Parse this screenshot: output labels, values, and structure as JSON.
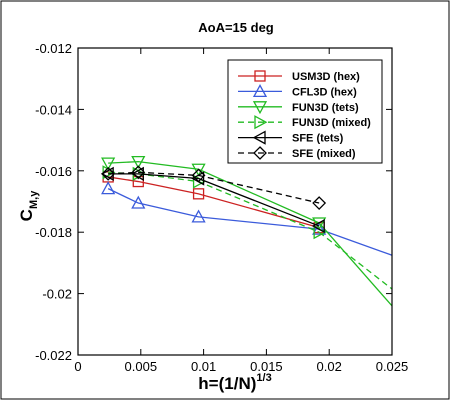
{
  "chart_data": {
    "type": "line",
    "title": "AoA=15 deg",
    "xlabel": {
      "main": "h=(1/N)",
      "sup": "1/3"
    },
    "ylabel": {
      "main": "C",
      "sub": "M,y"
    },
    "xlim": [
      0,
      0.025
    ],
    "ylim": [
      -0.022,
      -0.012
    ],
    "xticks": [
      0,
      0.005,
      0.01,
      0.015,
      0.02,
      0.025
    ],
    "xtick_labels": [
      "0",
      "0.005",
      "0.01",
      "0.015",
      "0.02",
      "0.025"
    ],
    "yticks": [
      -0.022,
      -0.02,
      -0.018,
      -0.016,
      -0.014,
      -0.012
    ],
    "ytick_labels": [
      "-0.022",
      "-0.02",
      "-0.018",
      "-0.016",
      "-0.014",
      "-0.012"
    ],
    "legend_position": "top-right",
    "series": [
      {
        "name": "USM3D (hex)",
        "color": "#cc2222",
        "marker": "square",
        "dashed": false,
        "x": [
          0.0024,
          0.0048,
          0.0096,
          0.0192
        ],
        "y": [
          -0.0162,
          -0.01635,
          -0.01675,
          -0.01785
        ]
      },
      {
        "name": "CFL3D (hex)",
        "color": "#3b5bdb",
        "marker": "triangle-up",
        "dashed": false,
        "x": [
          0.0024,
          0.0048,
          0.0096,
          0.0192
        ],
        "y": [
          -0.01658,
          -0.01705,
          -0.0175,
          -0.0179
        ],
        "fit": {
          "x": [
            0.0192,
            0.025
          ],
          "y": [
            -0.0179,
            -0.01875
          ]
        }
      },
      {
        "name": "FUN3D (tets)",
        "color": "#22bb22",
        "marker": "triangle-down",
        "dashed": false,
        "x": [
          0.0024,
          0.0048,
          0.0096,
          0.0192
        ],
        "y": [
          -0.01575,
          -0.0157,
          -0.01595,
          -0.0177
        ],
        "fit": {
          "x": [
            0.0192,
            0.025
          ],
          "y": [
            -0.0177,
            -0.0204
          ]
        }
      },
      {
        "name": "FUN3D (mixed)",
        "color": "#22bb22",
        "marker": "triangle-right",
        "dashed": true,
        "x": [
          0.0024,
          0.0048,
          0.0096,
          0.0192
        ],
        "y": [
          -0.01605,
          -0.0161,
          -0.01635,
          -0.018
        ],
        "fit": {
          "x": [
            0.0192,
            0.025
          ],
          "y": [
            -0.018,
            -0.01985
          ]
        }
      },
      {
        "name": "SFE (tets)",
        "color": "#000000",
        "marker": "triangle-left",
        "dashed": false,
        "x": [
          0.0024,
          0.0048,
          0.0096,
          0.0192
        ],
        "y": [
          -0.0161,
          -0.0161,
          -0.01625,
          -0.0178
        ]
      },
      {
        "name": "SFE (mixed)",
        "color": "#000000",
        "marker": "diamond",
        "dashed": true,
        "x": [
          0.0024,
          0.0048,
          0.0096,
          0.0192
        ],
        "y": [
          -0.0161,
          -0.01605,
          -0.01615,
          -0.01705
        ]
      }
    ]
  }
}
